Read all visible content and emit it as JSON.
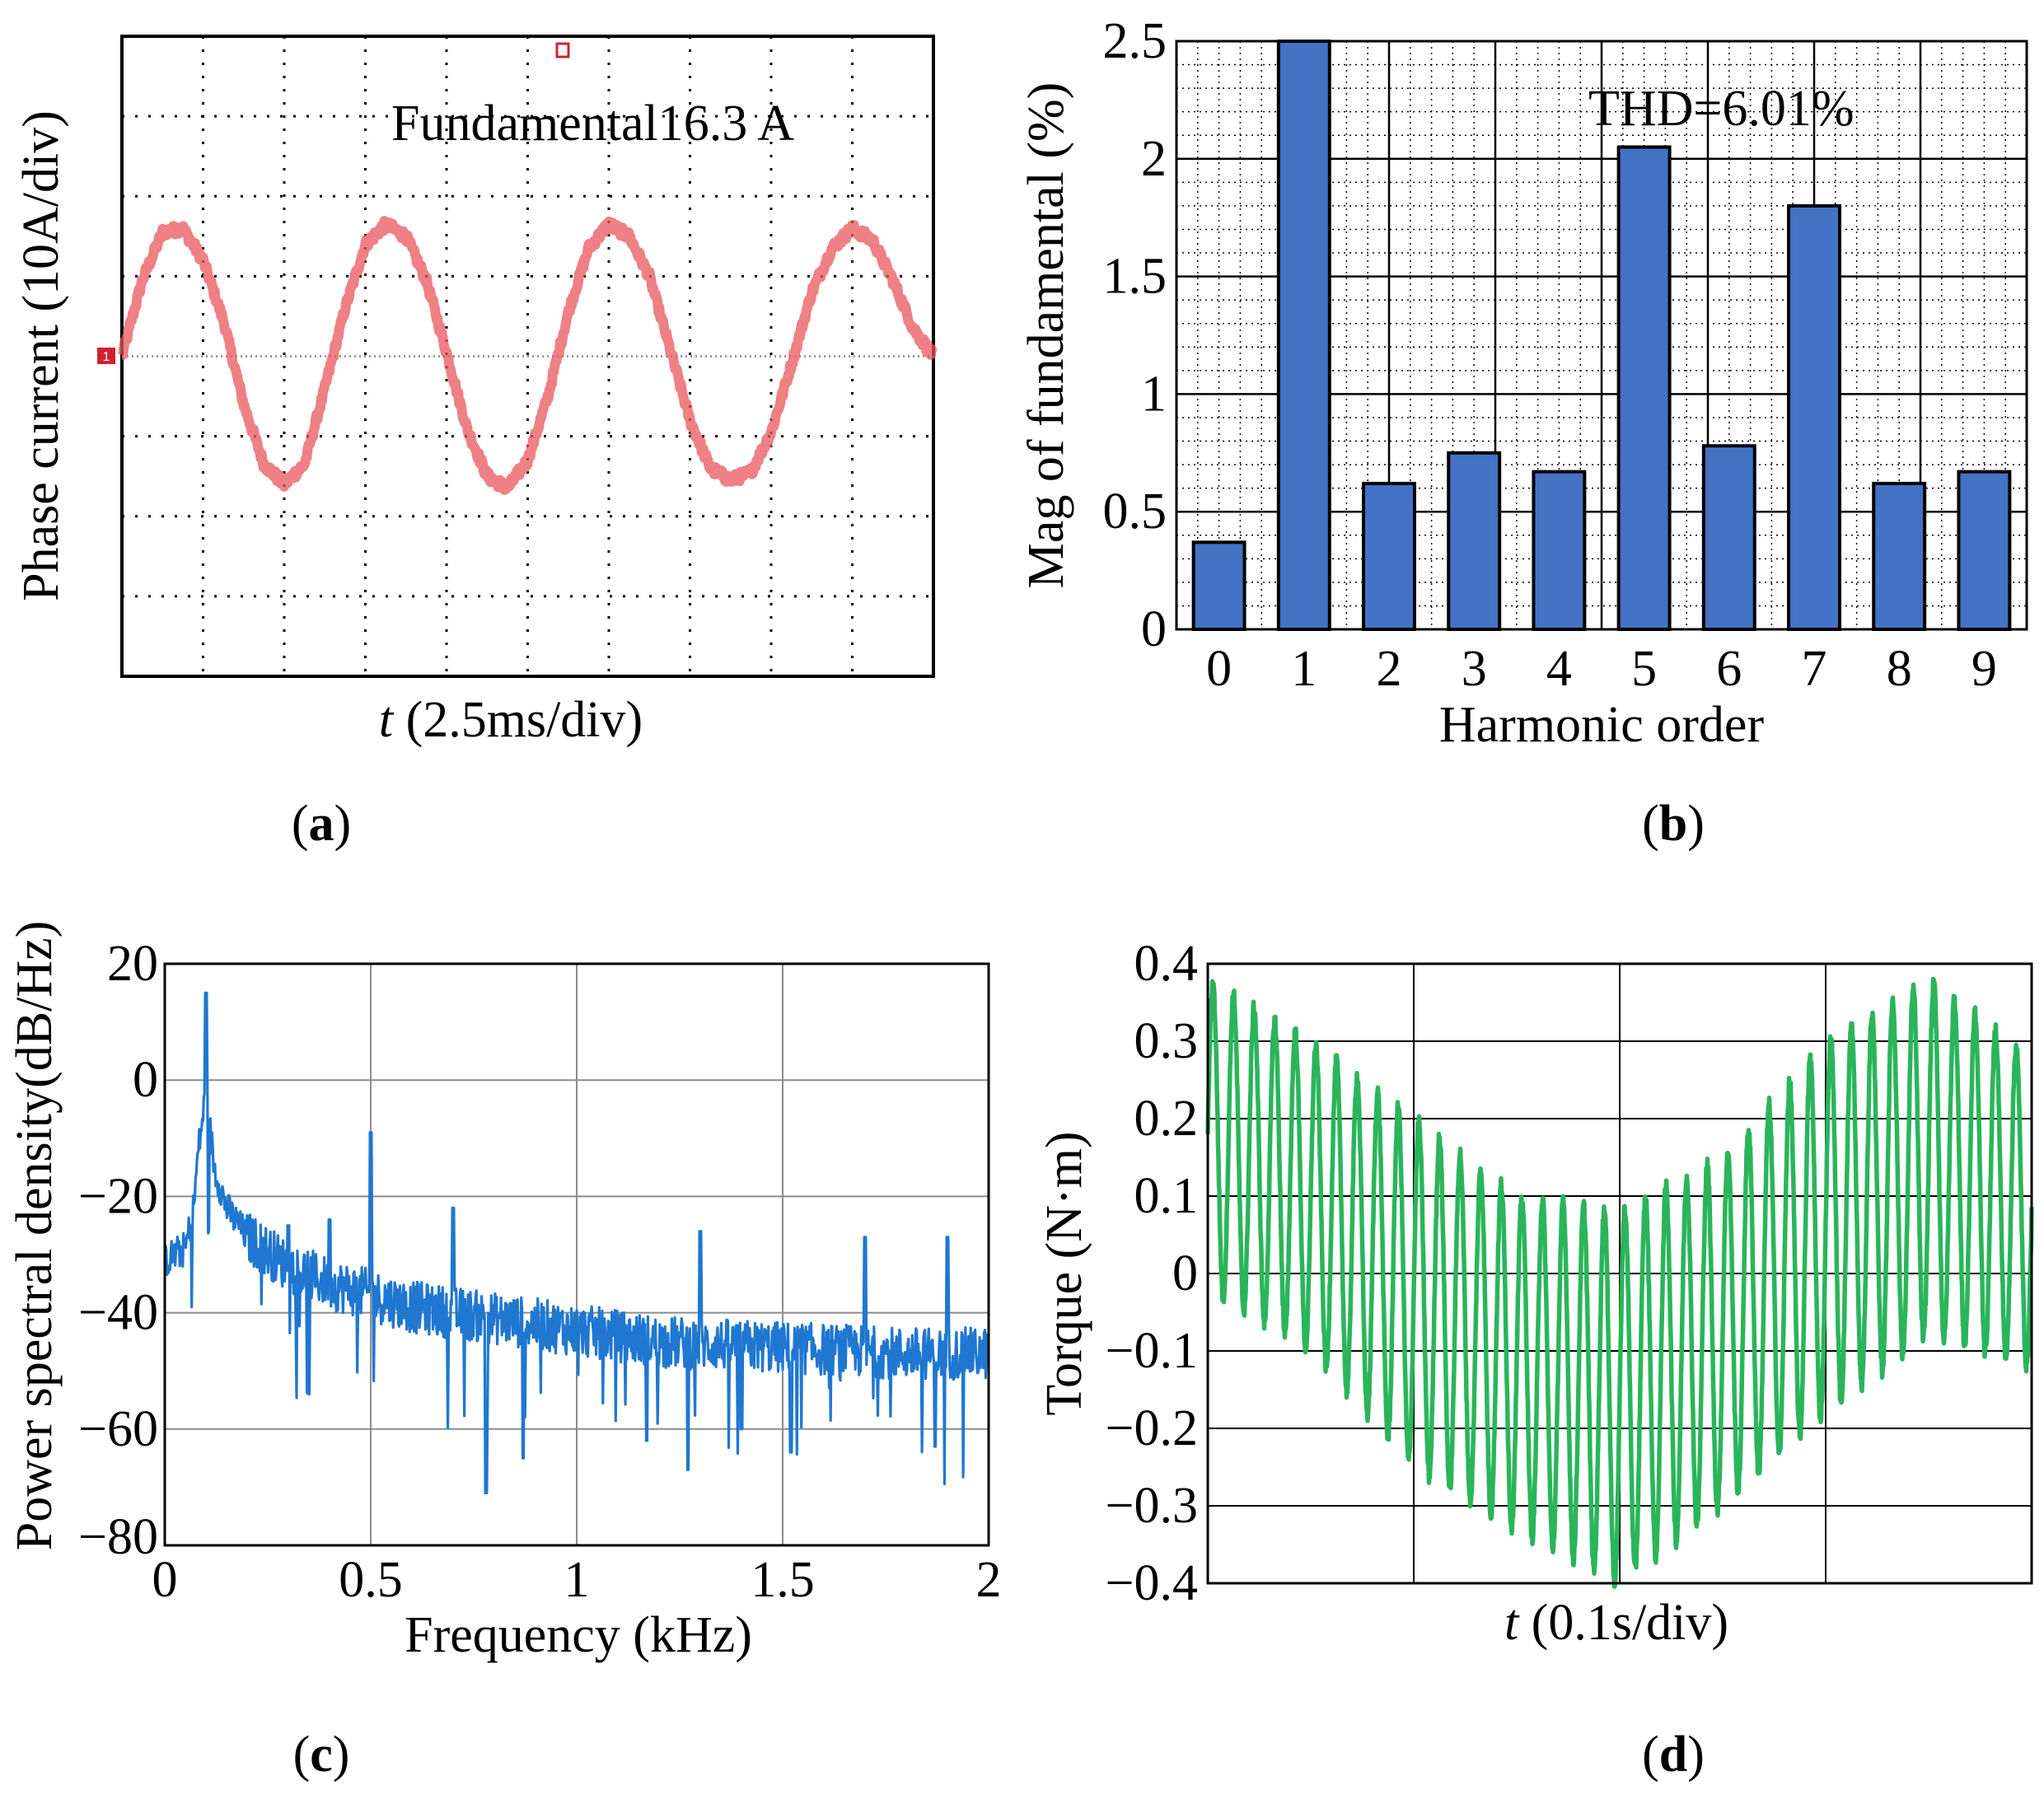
{
  "panels": {
    "a": {
      "tag": "a",
      "ylabel": "Phase current (10A/div)",
      "xlabel_italic": "t",
      "xlabel_rest": " (2.5ms/div)",
      "annotation": "Fundamental16.3 A",
      "ch_marker": "1",
      "colors": {
        "trace": "#e8555d",
        "grid": "#000000"
      }
    },
    "b": {
      "tag": "b",
      "xlabel": "Harmonic order",
      "ylabel": "Mag of fundamental (%)",
      "annotation": "THD=6.01%"
    },
    "c": {
      "tag": "c",
      "xlabel": "Frequency (kHz)",
      "ylabel": "Power spectral density(dB/Hz)"
    },
    "d": {
      "tag": "d",
      "xlabel_italic": "t",
      "xlabel_rest": " (0.1s/div)",
      "ylabel": "Torque (N·m)"
    }
  },
  "chart_data": [
    {
      "panel": "a",
      "type": "line",
      "title": "",
      "xlabel": "t (2.5ms/div)",
      "ylabel": "Phase current (10A/div)",
      "x_divisions": 10,
      "y_divisions": 8,
      "annotation": "Fundamental16.3 A",
      "series": [
        {
          "x_div": [
            0,
            0.25,
            0.5,
            0.75,
            1.0,
            1.25,
            1.5,
            1.75,
            2.0,
            2.25,
            2.5,
            2.75,
            3.0,
            3.25,
            3.5,
            3.75,
            4.0,
            4.25,
            4.5,
            4.75,
            5.0,
            5.25,
            5.5,
            5.75,
            6.0,
            6.25,
            6.5,
            6.75,
            7.0,
            7.25,
            7.5,
            7.75,
            8.0,
            8.25,
            8.5,
            8.75,
            9.0,
            9.25,
            9.5,
            9.75,
            10.0
          ],
          "y_div": [
            0,
            0.95,
            1.55,
            1.6,
            1.2,
            0.45,
            -0.6,
            -1.35,
            -1.6,
            -1.35,
            -0.4,
            0.6,
            1.4,
            1.65,
            1.5,
            0.95,
            0.05,
            -0.9,
            -1.5,
            -1.65,
            -1.3,
            -0.5,
            0.55,
            1.35,
            1.65,
            1.5,
            1.0,
            0.1,
            -0.8,
            -1.4,
            -1.55,
            -1.45,
            -0.95,
            -0.1,
            0.8,
            1.35,
            1.6,
            1.45,
            0.95,
            0.35,
            0.0
          ]
        }
      ],
      "colors": {
        "line": "#e8555d"
      }
    },
    {
      "panel": "b",
      "type": "bar",
      "title": "",
      "xlabel": "Harmonic order",
      "ylabel": "Mag of fundamental (%)",
      "categories": [
        "0",
        "1",
        "2",
        "3",
        "4",
        "5",
        "6",
        "7",
        "8",
        "9"
      ],
      "values": [
        0.37,
        2.5,
        0.62,
        0.75,
        0.67,
        2.05,
        0.78,
        1.8,
        0.62,
        0.67
      ],
      "ylim": [
        0,
        2.5
      ],
      "yticks": [
        "0",
        "0.5",
        "1",
        "1.5",
        "2",
        "2.5"
      ],
      "annotation": "THD=6.01%",
      "grid": true,
      "colors": {
        "bar": "#4472c4",
        "edge": "#000000"
      }
    },
    {
      "panel": "c",
      "type": "line",
      "title": "",
      "xlabel": "Frequency (kHz)",
      "ylabel": "Power spectral density(dB/Hz)",
      "xlim": [
        0,
        2
      ],
      "ylim": [
        -80,
        20
      ],
      "xticks": [
        "0",
        "0.5",
        "1",
        "1.5",
        "2"
      ],
      "yticks": [
        "−80",
        "−60",
        "−40",
        "−20",
        "0",
        "20"
      ],
      "grid": true,
      "baseline": [
        [
          0,
          -31
        ],
        [
          0.05,
          -29
        ],
        [
          0.07,
          -22
        ],
        [
          0.08,
          -13
        ],
        [
          0.1,
          -2
        ],
        [
          0.12,
          -15
        ],
        [
          0.15,
          -22
        ],
        [
          0.2,
          -27
        ],
        [
          0.3,
          -32
        ],
        [
          0.4,
          -35
        ],
        [
          0.5,
          -37
        ],
        [
          0.6,
          -39
        ],
        [
          0.8,
          -41
        ],
        [
          1.0,
          -43
        ],
        [
          1.2,
          -45
        ],
        [
          1.5,
          -46
        ],
        [
          1.8,
          -47
        ],
        [
          2.0,
          -47
        ]
      ],
      "peaks": [
        {
          "x": 0.1,
          "y": 15
        },
        {
          "x": 0.3,
          "y": -25
        },
        {
          "x": 0.4,
          "y": -24
        },
        {
          "x": 0.5,
          "y": -9
        },
        {
          "x": 0.7,
          "y": -22
        },
        {
          "x": 1.3,
          "y": -26
        },
        {
          "x": 1.7,
          "y": -27
        },
        {
          "x": 1.9,
          "y": -27
        }
      ],
      "dips": [
        {
          "x": 0.35,
          "y": -54
        },
        {
          "x": 0.78,
          "y": -71
        },
        {
          "x": 0.87,
          "y": -65
        },
        {
          "x": 1.17,
          "y": -62
        },
        {
          "x": 1.27,
          "y": -67
        },
        {
          "x": 1.4,
          "y": -60
        },
        {
          "x": 1.52,
          "y": -64
        },
        {
          "x": 1.87,
          "y": -63
        }
      ],
      "colors": {
        "line": "#1f77d0"
      }
    },
    {
      "panel": "d",
      "type": "line",
      "title": "",
      "xlabel": "t (0.1s/div)",
      "ylabel": "Torque (N·m)",
      "x_divisions": 4,
      "ylim": [
        -0.4,
        0.4
      ],
      "yticks": [
        "−0.4",
        "−0.3",
        "−0.2",
        "−0.1",
        "0",
        "0.1",
        "0.2",
        "0.3",
        "0.4"
      ],
      "grid": true,
      "oscillation_cycles": 40,
      "envelope_upper": [
        [
          0,
          0.38
        ],
        [
          0.5,
          0.3
        ],
        [
          1.0,
          0.2
        ],
        [
          1.5,
          0.1
        ],
        [
          2.0,
          0.08
        ],
        [
          2.5,
          0.15
        ],
        [
          3.0,
          0.3
        ],
        [
          3.5,
          0.38
        ],
        [
          4.0,
          0.28
        ]
      ],
      "envelope_lower": [
        [
          0,
          -0.02
        ],
        [
          0.5,
          -0.1
        ],
        [
          1.0,
          -0.25
        ],
        [
          1.5,
          -0.33
        ],
        [
          2.0,
          -0.4
        ],
        [
          2.5,
          -0.3
        ],
        [
          3.0,
          -0.18
        ],
        [
          3.5,
          -0.08
        ],
        [
          4.0,
          -0.12
        ]
      ],
      "colors": {
        "line": "#2ab55a"
      }
    }
  ]
}
